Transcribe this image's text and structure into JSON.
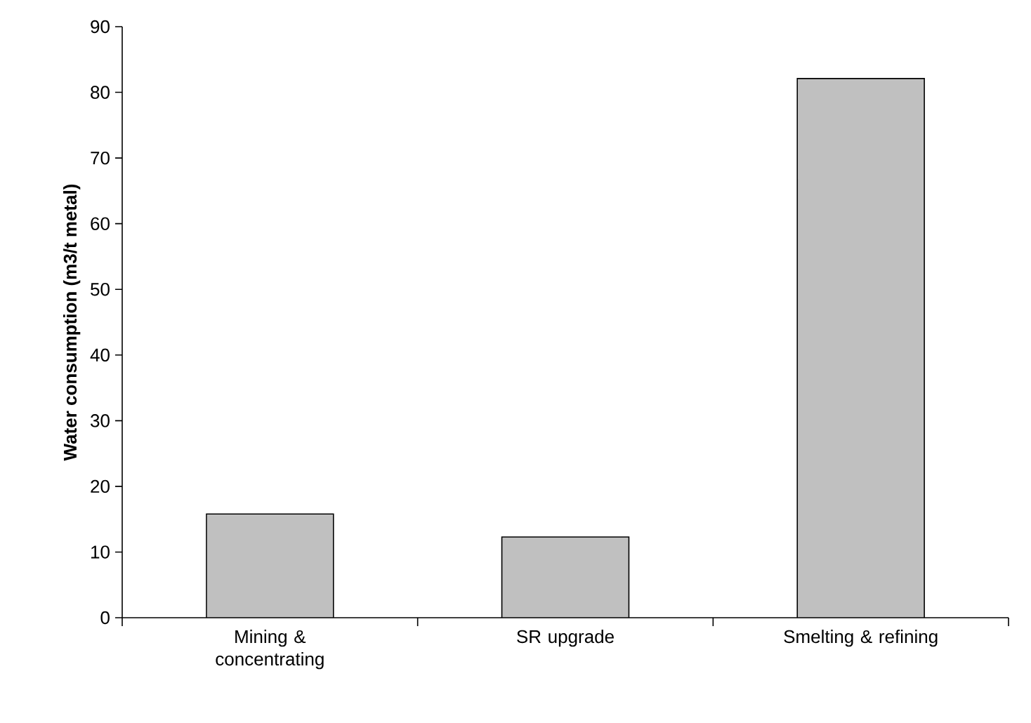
{
  "chart_data": {
    "type": "bar",
    "ylabel": "Water consumption (m3/t metal)",
    "categories": [
      "Mining & concentrating",
      "SR upgrade",
      "Smelting & refining"
    ],
    "values": [
      15.8,
      12.3,
      82.1
    ],
    "color": "#c0c0c0",
    "ylim": [
      0,
      90
    ],
    "yticks": [
      0,
      10,
      20,
      30,
      40,
      50,
      60,
      70,
      80,
      90
    ]
  }
}
